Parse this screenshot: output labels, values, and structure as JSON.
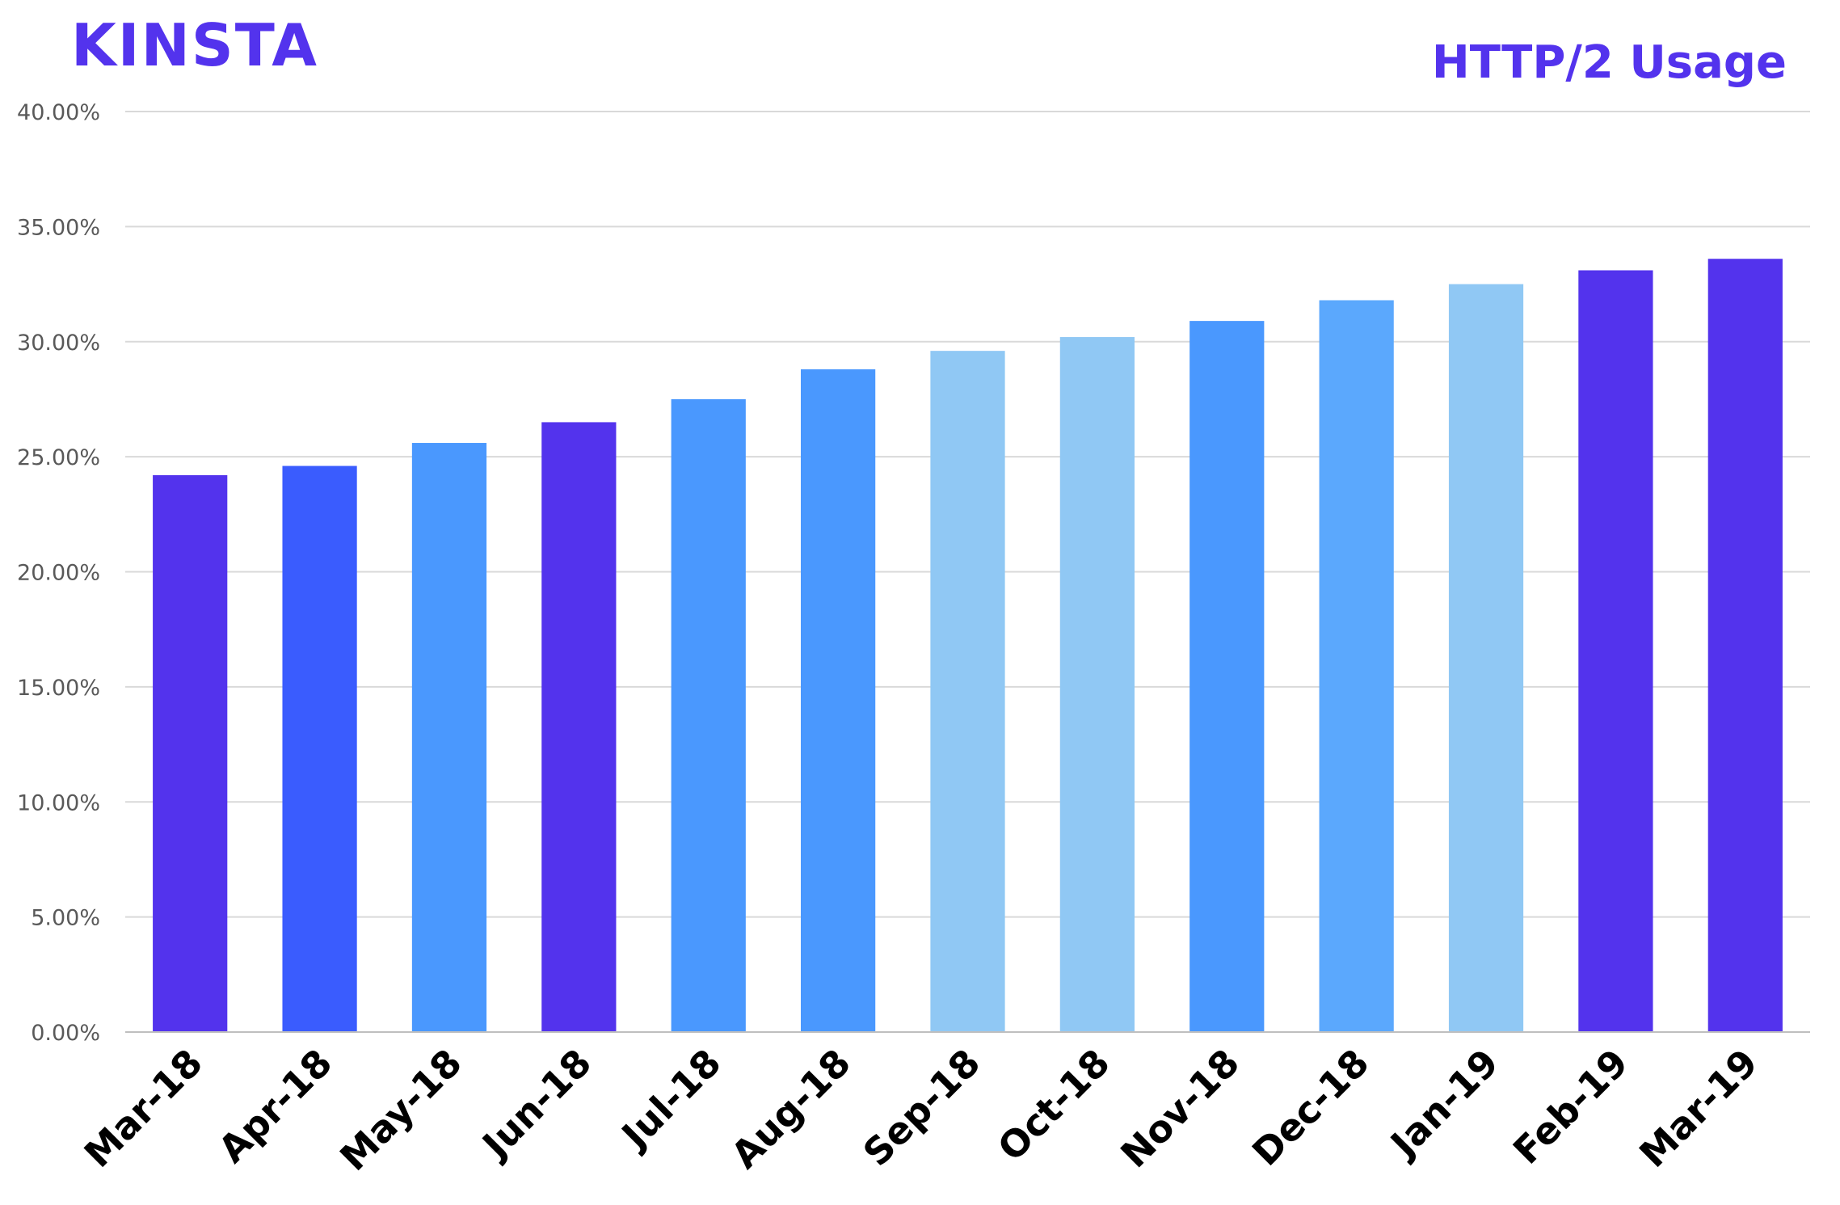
{
  "brand": {
    "logo_text": "KINSTA",
    "color": "#5333ed"
  },
  "chart_data": {
    "type": "bar",
    "title": "HTTP/2 Usage",
    "xlabel": "",
    "ylabel": "",
    "categories": [
      "Mar-18",
      "Apr-18",
      "May-18",
      "Jun-18",
      "Jul-18",
      "Aug-18",
      "Sep-18",
      "Oct-18",
      "Nov-18",
      "Dec-18",
      "Jan-19",
      "Feb-19",
      "Mar-19"
    ],
    "values": [
      24.2,
      24.6,
      25.6,
      26.5,
      27.5,
      28.8,
      29.6,
      30.2,
      30.9,
      31.8,
      32.5,
      33.1,
      33.6
    ],
    "bar_colors": [
      "#5333ed",
      "#3a5cfe",
      "#4a98fe",
      "#5333ed",
      "#4a98fe",
      "#4a98fe",
      "#90c8f4",
      "#90c8f4",
      "#4a98fe",
      "#5ba8fd",
      "#90c8f4",
      "#5333ed",
      "#5333ed"
    ],
    "ylim": [
      0,
      40
    ],
    "yticks": [
      0,
      5,
      10,
      15,
      20,
      25,
      30,
      35,
      40
    ],
    "ytick_labels": [
      "0.00%",
      "5.00%",
      "10.00%",
      "15.00%",
      "20.00%",
      "25.00%",
      "30.00%",
      "35.00%",
      "40.00%"
    ],
    "grid": true,
    "legend": "none"
  }
}
